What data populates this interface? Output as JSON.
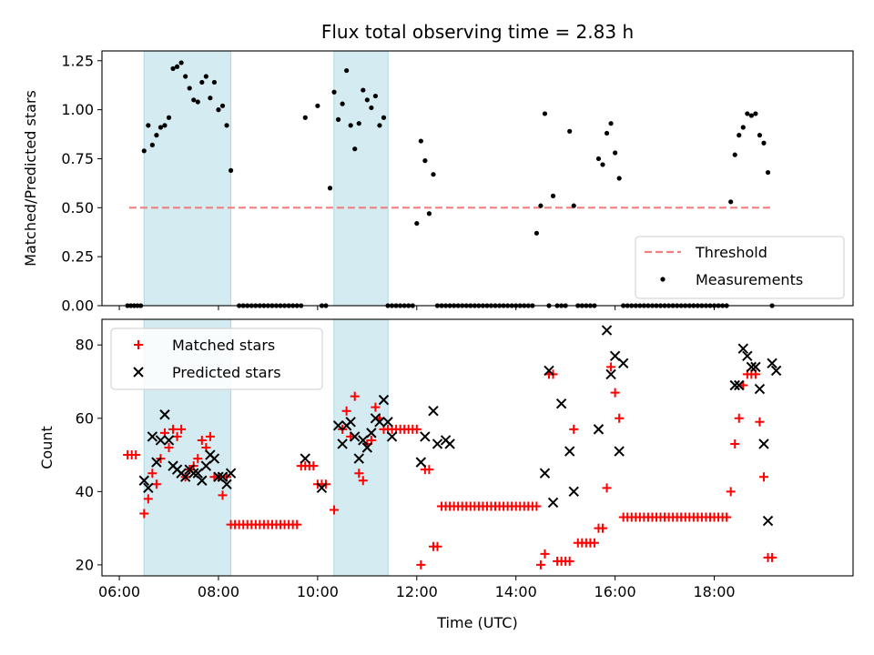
{
  "chart_data": [
    {
      "type": "scatter",
      "title": "Flux total observing time = 2.83 h",
      "xlabel": "",
      "ylabel": "Matched/Predicted stars",
      "ylim": [
        0,
        1.3
      ],
      "yticks": [
        "0.00",
        "0.25",
        "0.50",
        "0.75",
        "1.00",
        "1.25"
      ],
      "xlim_hours": [
        5.65,
        20.8
      ],
      "threshold": 0.5,
      "threshold_range_hours": [
        6.2,
        19.15
      ],
      "threshold_color": "#f08080",
      "point_color": "#000000",
      "shaded_intervals_hours": [
        [
          6.5,
          8.25
        ],
        [
          10.33,
          11.42
        ]
      ],
      "shade_color": "#add8e6",
      "legend": {
        "placement": "lower-right",
        "entries": [
          {
            "label": "Threshold",
            "kind": "dashed-line"
          },
          {
            "label": "Measurements",
            "kind": "dot"
          }
        ]
      },
      "series": [
        {
          "name": "Measurements",
          "x": [
            "06:10",
            "06:14",
            "06:18",
            "06:22",
            "06:26",
            "06:30",
            "06:35",
            "06:40",
            "06:45",
            "06:50",
            "06:55",
            "07:00",
            "07:05",
            "07:10",
            "07:15",
            "07:20",
            "07:25",
            "07:30",
            "07:35",
            "07:40",
            "07:45",
            "07:50",
            "07:55",
            "08:00",
            "08:05",
            "08:10",
            "08:15",
            "08:25",
            "08:30",
            "08:35",
            "08:40",
            "08:45",
            "08:50",
            "08:55",
            "09:00",
            "09:05",
            "09:10",
            "09:15",
            "09:20",
            "09:25",
            "09:30",
            "09:35",
            "09:40",
            "09:45",
            "10:00",
            "10:05",
            "10:10",
            "10:15",
            "10:20",
            "10:25",
            "10:30",
            "10:35",
            "10:40",
            "10:45",
            "10:50",
            "10:55",
            "11:00",
            "11:05",
            "11:10",
            "11:15",
            "11:20",
            "11:25",
            "11:30",
            "11:35",
            "11:40",
            "11:45",
            "11:50",
            "11:55",
            "12:00",
            "12:05",
            "12:10",
            "12:15",
            "12:20",
            "12:25",
            "12:30",
            "12:35",
            "12:40",
            "12:45",
            "12:50",
            "12:55",
            "13:00",
            "13:05",
            "13:10",
            "13:15",
            "13:20",
            "13:25",
            "13:30",
            "13:35",
            "13:40",
            "13:45",
            "13:50",
            "13:55",
            "14:00",
            "14:05",
            "14:10",
            "14:15",
            "14:20",
            "14:25",
            "14:30",
            "14:35",
            "14:40",
            "14:45",
            "14:50",
            "14:55",
            "15:00",
            "15:05",
            "15:10",
            "15:15",
            "15:20",
            "15:25",
            "15:30",
            "15:35",
            "15:40",
            "15:45",
            "15:50",
            "15:55",
            "16:00",
            "16:05",
            "16:10",
            "16:15",
            "16:20",
            "16:25",
            "16:30",
            "16:35",
            "16:40",
            "16:45",
            "16:50",
            "16:55",
            "17:00",
            "17:05",
            "17:10",
            "17:15",
            "17:20",
            "17:25",
            "17:30",
            "17:35",
            "17:40",
            "17:45",
            "17:50",
            "17:55",
            "18:00",
            "18:05",
            "18:10",
            "18:15",
            "18:20",
            "18:25",
            "18:30",
            "18:35",
            "18:40",
            "18:45",
            "18:50",
            "18:55",
            "19:00",
            "19:05",
            "19:10"
          ],
          "y": [
            0,
            0,
            0,
            0,
            0,
            0.79,
            0.92,
            0.82,
            0.87,
            0.91,
            0.92,
            0.96,
            1.21,
            1.22,
            1.24,
            1.17,
            1.11,
            1.05,
            1.04,
            1.14,
            1.17,
            1.06,
            1.14,
            1.0,
            1.02,
            0.92,
            0.69,
            0,
            0,
            0,
            0,
            0,
            0,
            0,
            0,
            0,
            0,
            0,
            0,
            0,
            0,
            0,
            0,
            0.96,
            1.02,
            0,
            0,
            0.6,
            1.09,
            0.95,
            1.03,
            1.2,
            0.92,
            0.8,
            0.93,
            1.1,
            1.05,
            1.01,
            1.07,
            0.92,
            0.96,
            0,
            0,
            0,
            0,
            0,
            0,
            0,
            0.42,
            0.84,
            0.74,
            0.47,
            0.67,
            0,
            0,
            0,
            0,
            0,
            0,
            0,
            0,
            0,
            0,
            0,
            0,
            0,
            0,
            0,
            0,
            0,
            0,
            0,
            0,
            0,
            0,
            0,
            0,
            0.37,
            0.51,
            0.98,
            0,
            0.56,
            0,
            0,
            0,
            0.89,
            0.51,
            0,
            0,
            0,
            0,
            0,
            0.75,
            0.72,
            0.88,
            0.93,
            0.78,
            0.65,
            0,
            0,
            0,
            0,
            0,
            0,
            0,
            0,
            0,
            0,
            0,
            0,
            0,
            0,
            0,
            0,
            0,
            0,
            0,
            0,
            0,
            0,
            0,
            0,
            0,
            0,
            0.53,
            0.77,
            0.87,
            0.91,
            0.98,
            0.97,
            0.98,
            0.87,
            0.83,
            0.68,
            0
          ]
        }
      ]
    },
    {
      "type": "scatter",
      "title": "",
      "xlabel": "Time (UTC)",
      "ylabel": "Count",
      "ylim": [
        17,
        87
      ],
      "yticks": [
        "20",
        "40",
        "60",
        "80"
      ],
      "xticks": [
        "06:00",
        "08:00",
        "10:00",
        "12:00",
        "14:00",
        "16:00",
        "18:00"
      ],
      "xlim_hours": [
        5.65,
        20.8
      ],
      "shaded_intervals_hours": [
        [
          6.5,
          8.25
        ],
        [
          10.33,
          11.42
        ]
      ],
      "shade_color": "#add8e6",
      "legend": {
        "placement": "upper-left",
        "entries": [
          {
            "label": "Matched stars",
            "kind": "plus",
            "color": "#ff0000"
          },
          {
            "label": "Predicted stars",
            "kind": "cross",
            "color": "#000000"
          }
        ]
      },
      "series": [
        {
          "name": "Matched stars",
          "color": "#ff0000",
          "x": [
            "06:10",
            "06:15",
            "06:20",
            "06:30",
            "06:35",
            "06:40",
            "06:45",
            "06:50",
            "06:55",
            "07:00",
            "07:05",
            "07:10",
            "07:15",
            "07:20",
            "07:25",
            "07:30",
            "07:35",
            "07:40",
            "07:45",
            "07:50",
            "07:55",
            "08:00",
            "08:05",
            "08:10",
            "08:15",
            "08:20",
            "08:25",
            "08:30",
            "08:35",
            "08:40",
            "08:45",
            "08:50",
            "08:55",
            "09:00",
            "09:05",
            "09:10",
            "09:15",
            "09:20",
            "09:25",
            "09:30",
            "09:35",
            "09:40",
            "09:45",
            "09:50",
            "09:55",
            "10:00",
            "10:05",
            "10:10",
            "10:20",
            "10:30",
            "10:35",
            "10:40",
            "10:45",
            "10:50",
            "10:55",
            "11:00",
            "11:05",
            "11:10",
            "11:15",
            "11:20",
            "11:25",
            "11:30",
            "11:35",
            "11:40",
            "11:45",
            "11:50",
            "11:55",
            "12:00",
            "12:05",
            "12:10",
            "12:15",
            "12:20",
            "12:25",
            "12:30",
            "12:35",
            "12:40",
            "12:45",
            "12:50",
            "12:55",
            "13:00",
            "13:05",
            "13:10",
            "13:15",
            "13:20",
            "13:25",
            "13:30",
            "13:35",
            "13:40",
            "13:45",
            "13:50",
            "13:55",
            "14:00",
            "14:05",
            "14:10",
            "14:15",
            "14:20",
            "14:25",
            "14:30",
            "14:35",
            "14:40",
            "14:45",
            "14:50",
            "14:55",
            "15:00",
            "15:05",
            "15:10",
            "15:15",
            "15:20",
            "15:25",
            "15:30",
            "15:35",
            "15:40",
            "15:45",
            "15:50",
            "15:55",
            "16:00",
            "16:05",
            "16:10",
            "16:15",
            "16:20",
            "16:25",
            "16:30",
            "16:35",
            "16:40",
            "16:45",
            "16:50",
            "16:55",
            "17:00",
            "17:05",
            "17:10",
            "17:15",
            "17:20",
            "17:25",
            "17:30",
            "17:35",
            "17:40",
            "17:45",
            "17:50",
            "17:55",
            "18:00",
            "18:05",
            "18:10",
            "18:15",
            "18:20",
            "18:25",
            "18:30",
            "18:35",
            "18:40",
            "18:45",
            "18:50",
            "18:55",
            "19:00",
            "19:05",
            "19:10"
          ],
          "y": [
            50,
            50,
            50,
            34,
            38,
            45,
            42,
            49,
            56,
            52,
            57,
            55,
            57,
            44,
            46,
            47,
            49,
            54,
            52,
            55,
            44,
            44,
            39,
            44,
            31,
            31,
            31,
            31,
            31,
            31,
            31,
            31,
            31,
            31,
            31,
            31,
            31,
            31,
            31,
            31,
            31,
            47,
            47,
            47,
            47,
            42,
            42,
            42,
            35,
            57,
            62,
            55,
            66,
            45,
            43,
            53,
            54,
            63,
            60,
            57,
            57,
            57,
            57,
            57,
            57,
            57,
            57,
            57,
            20,
            46,
            46,
            25,
            25,
            36,
            36,
            36,
            36,
            36,
            36,
            36,
            36,
            36,
            36,
            36,
            36,
            36,
            36,
            36,
            36,
            36,
            36,
            36,
            36,
            36,
            36,
            36,
            36,
            20,
            23,
            72,
            72,
            21,
            21,
            21,
            21,
            57,
            26,
            26,
            26,
            26,
            26,
            30,
            30,
            41,
            74,
            67,
            60,
            33,
            33,
            33,
            33,
            33,
            33,
            33,
            33,
            33,
            33,
            33,
            33,
            33,
            33,
            33,
            33,
            33,
            33,
            33,
            33,
            33,
            33,
            33,
            33,
            33,
            33,
            40,
            53,
            60,
            69,
            72,
            72,
            72,
            59,
            44,
            22,
            22
          ]
        },
        {
          "name": "Predicted stars",
          "color": "#000000",
          "x": [
            "06:30",
            "06:35",
            "06:40",
            "06:45",
            "06:50",
            "06:55",
            "07:00",
            "07:05",
            "07:10",
            "07:15",
            "07:20",
            "07:25",
            "07:30",
            "07:35",
            "07:40",
            "07:45",
            "07:50",
            "07:55",
            "08:00",
            "08:05",
            "08:10",
            "08:15",
            "09:45",
            "10:05",
            "10:25",
            "10:30",
            "10:35",
            "10:40",
            "10:45",
            "10:50",
            "10:55",
            "11:00",
            "11:05",
            "11:10",
            "11:15",
            "11:20",
            "11:25",
            "11:30",
            "12:05",
            "12:10",
            "12:20",
            "12:25",
            "12:35",
            "12:40",
            "14:35",
            "14:40",
            "14:45",
            "14:55",
            "15:05",
            "15:10",
            "15:40",
            "15:50",
            "15:55",
            "16:00",
            "16:05",
            "16:10",
            "18:25",
            "18:30",
            "18:35",
            "18:40",
            "18:45",
            "18:50",
            "18:55",
            "19:00",
            "19:05",
            "19:10",
            "19:15"
          ],
          "y": [
            43,
            41,
            55,
            48,
            54,
            61,
            54,
            47,
            46,
            45,
            44,
            46,
            45,
            45,
            43,
            47,
            50,
            49,
            44,
            44,
            42,
            45,
            49,
            41,
            58,
            53,
            58,
            59,
            55,
            49,
            54,
            52,
            56,
            60,
            59,
            65,
            59,
            55,
            48,
            55,
            62,
            53,
            54,
            53,
            45,
            73,
            37,
            64,
            51,
            40,
            57,
            84,
            72,
            77,
            51,
            75,
            69,
            69,
            79,
            77,
            74,
            74,
            68,
            53,
            32,
            75,
            73
          ]
        }
      ]
    }
  ]
}
